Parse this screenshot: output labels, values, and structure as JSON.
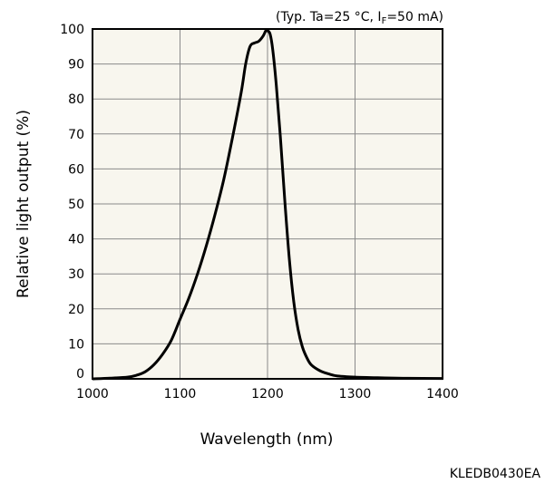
{
  "chart_data": {
    "type": "line",
    "condition_label": "(Typ. Ta=25 °C, IF=50 mA)",
    "condition_parts": {
      "prefix": "(Typ. Ta=25 °C, I",
      "subscript": "F",
      "suffix": "=50 mA)"
    },
    "xlabel": "Wavelength (nm)",
    "ylabel": "Relative light output (%)",
    "xlim": [
      1000,
      1400
    ],
    "ylim": [
      0,
      100
    ],
    "x_ticks": [
      1000,
      1100,
      1200,
      1300,
      1400
    ],
    "y_ticks": [
      0,
      10,
      20,
      30,
      40,
      50,
      60,
      70,
      80,
      90,
      100
    ],
    "grid": true,
    "series": [
      {
        "line_color": "#000000",
        "x": [
          1000,
          1020,
          1040,
          1050,
          1060,
          1070,
          1080,
          1090,
          1100,
          1110,
          1120,
          1130,
          1140,
          1150,
          1160,
          1170,
          1175,
          1180,
          1185,
          1190,
          1195,
          1198,
          1200,
          1203,
          1206,
          1210,
          1215,
          1220,
          1225,
          1230,
          1235,
          1240,
          1245,
          1250,
          1260,
          1270,
          1280,
          1300,
          1330,
          1360,
          1400
        ],
        "y": [
          0,
          0.2,
          0.5,
          1,
          2,
          4,
          7,
          11,
          17,
          23,
          30,
          38,
          47,
          57,
          69,
          82,
          90,
          95,
          96,
          96.5,
          98,
          99.5,
          99.5,
          98.5,
          94,
          84,
          68,
          50,
          34,
          22,
          14,
          9,
          6,
          4,
          2.3,
          1.4,
          0.8,
          0.5,
          0.3,
          0.15,
          0.1
        ]
      }
    ]
  },
  "doc_code": "KLEDB0430EA"
}
